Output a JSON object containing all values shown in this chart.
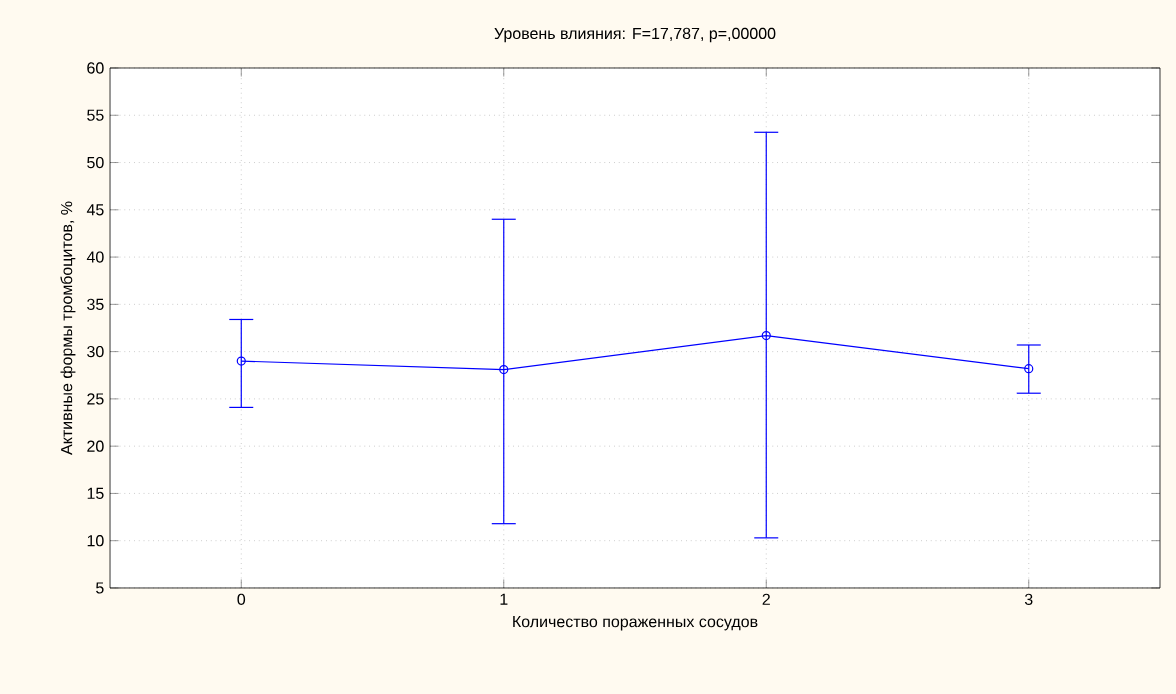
{
  "chart_data": {
    "type": "line",
    "title": "Уровень влияния: F=17,787, p=,00000",
    "xlabel": "Количество пораженных сосудов",
    "ylabel": "Активные формы тромбоцитов, %",
    "categories": [
      "0",
      "1",
      "2",
      "3"
    ],
    "series": [
      {
        "color": "#0000ff",
        "values": [
          29.0,
          28.1,
          31.7,
          28.2
        ],
        "errors": [
          [
            24.1,
            33.4
          ],
          [
            11.8,
            44.0
          ],
          [
            10.3,
            53.2
          ],
          [
            25.6,
            30.7
          ]
        ]
      }
    ],
    "ylim": [
      5,
      60
    ],
    "yticks": [
      5,
      10,
      15,
      20,
      25,
      30,
      35,
      40,
      45,
      50,
      55,
      60
    ],
    "grid": true,
    "marker": "circle",
    "line_style": "solid"
  }
}
